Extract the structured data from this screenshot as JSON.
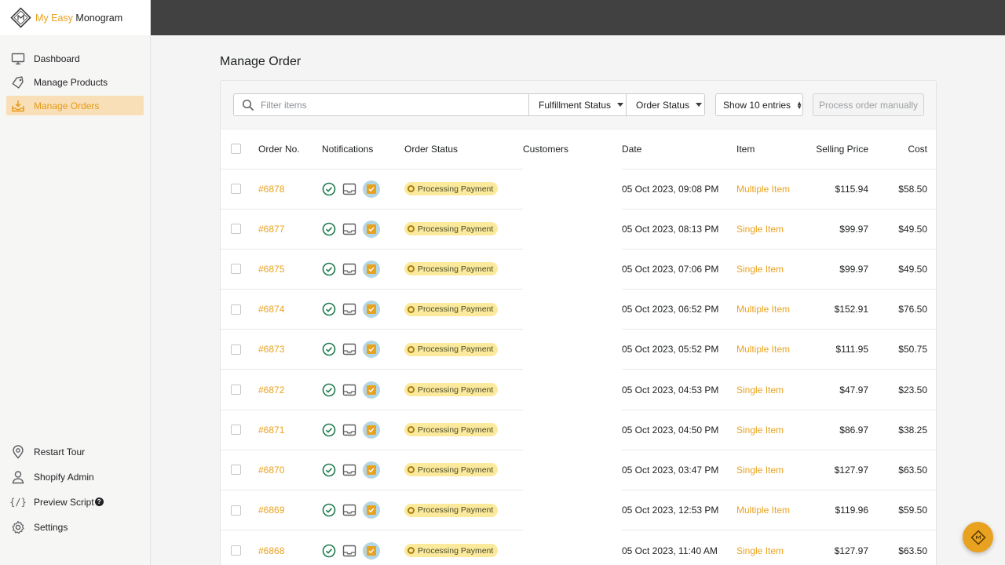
{
  "brand": {
    "name_accent": "My Easy",
    "name_rest": "Monogram"
  },
  "sidebar": {
    "items": [
      {
        "label": "Dashboard",
        "icon": "monitor-icon"
      },
      {
        "label": "Manage Products",
        "icon": "tag-icon"
      },
      {
        "label": "Manage Orders",
        "icon": "inbox-download-icon",
        "active": true
      }
    ],
    "bottom_items": [
      {
        "label": "Restart Tour",
        "icon": "map-pin-icon"
      },
      {
        "label": "Shopify Admin",
        "icon": "user-icon"
      },
      {
        "label": "Preview Script",
        "icon": "code-braces-icon",
        "badge": "?"
      },
      {
        "label": "Settings",
        "icon": "gear-icon"
      }
    ]
  },
  "page": {
    "title": "Manage Order"
  },
  "toolbar": {
    "search_placeholder": "Filter items",
    "fulfillment_label": "Fulfillment Status",
    "order_status_label": "Order Status",
    "show_entries_label": "Show 10 entries",
    "process_button": "Process order manually"
  },
  "table": {
    "headers": {
      "order_no": "Order No.",
      "notifications": "Notifications",
      "order_status": "Order Status",
      "customers": "Customers",
      "date": "Date",
      "item": "Item",
      "selling_price": "Selling Price",
      "cost": "Cost"
    },
    "rows": [
      {
        "order_no": "#6878",
        "status": "Processing Payment",
        "date": "05 Oct 2023, 09:08 PM",
        "item": "Multiple Item",
        "price": "$115.94",
        "cost": "$58.50"
      },
      {
        "order_no": "#6877",
        "status": "Processing Payment",
        "date": "05 Oct 2023, 08:13 PM",
        "item": "Single Item",
        "price": "$99.97",
        "cost": "$49.50"
      },
      {
        "order_no": "#6875",
        "status": "Processing Payment",
        "date": "05 Oct 2023, 07:06 PM",
        "item": "Single Item",
        "price": "$99.97",
        "cost": "$49.50"
      },
      {
        "order_no": "#6874",
        "status": "Processing Payment",
        "date": "05 Oct 2023, 06:52 PM",
        "item": "Multiple Item",
        "price": "$152.91",
        "cost": "$76.50"
      },
      {
        "order_no": "#6873",
        "status": "Processing Payment",
        "date": "05 Oct 2023, 05:52 PM",
        "item": "Multiple Item",
        "price": "$111.95",
        "cost": "$50.75"
      },
      {
        "order_no": "#6872",
        "status": "Processing Payment",
        "date": "05 Oct 2023, 04:53 PM",
        "item": "Single Item",
        "price": "$47.97",
        "cost": "$23.50"
      },
      {
        "order_no": "#6871",
        "status": "Processing Payment",
        "date": "05 Oct 2023, 04:50 PM",
        "item": "Single Item",
        "price": "$86.97",
        "cost": "$38.25"
      },
      {
        "order_no": "#6870",
        "status": "Processing Payment",
        "date": "05 Oct 2023, 03:47 PM",
        "item": "Single Item",
        "price": "$127.97",
        "cost": "$63.50"
      },
      {
        "order_no": "#6869",
        "status": "Processing Payment",
        "date": "05 Oct 2023, 12:53 PM",
        "item": "Multiple Item",
        "price": "$119.96",
        "cost": "$59.50"
      },
      {
        "order_no": "#6868",
        "status": "Processing Payment",
        "date": "05 Oct 2023, 11:40 AM",
        "item": "Single Item",
        "price": "$127.97",
        "cost": "$63.50"
      }
    ]
  },
  "colors": {
    "accent": "#e9a21f",
    "active_bg": "#f8dfb7",
    "topbar": "#414141",
    "badge_bg": "#fbe99c",
    "success": "#1f7a4d"
  }
}
